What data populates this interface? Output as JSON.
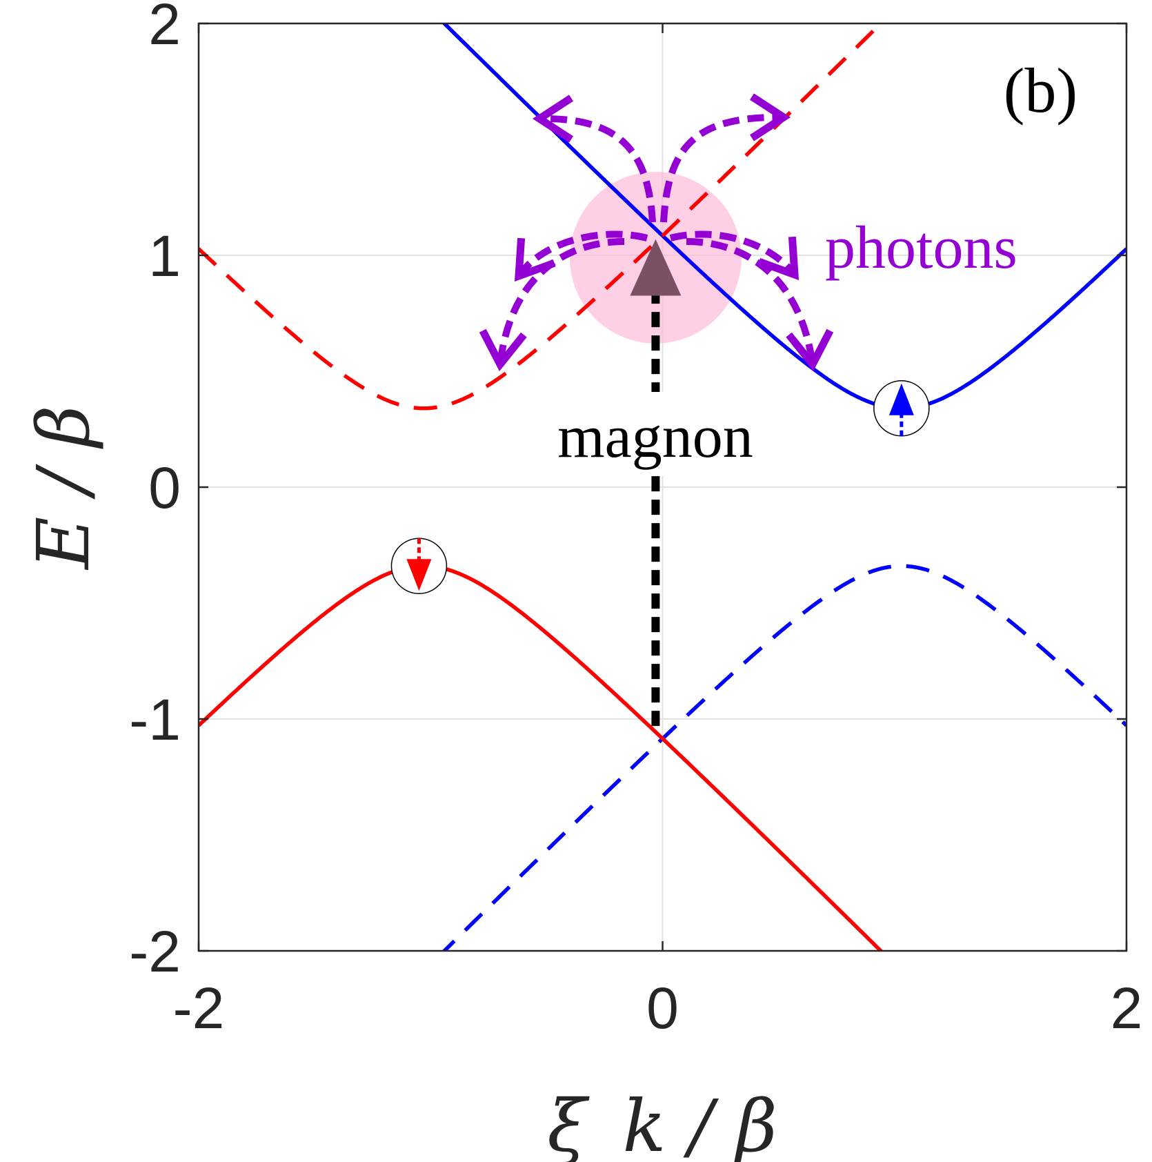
{
  "chart_data": {
    "type": "line",
    "title": "",
    "panel_label": "(b)",
    "xlabel": "ξ_k / β",
    "ylabel": "E / β",
    "xlim": [
      -2,
      2
    ],
    "ylim": [
      -2,
      2
    ],
    "xticks": [
      "-2",
      "0",
      "2"
    ],
    "yticks": [
      "2",
      "1",
      "0",
      "-1",
      "-2"
    ],
    "grid": true,
    "parameters": {
      "Delta": 0.34,
      "x_shift": 1.03
    },
    "series": [
      {
        "name": "blue-solid",
        "formula": "sqrt((x-1.03)^2+0.34^2)",
        "color": "#0000FF",
        "style": "solid",
        "x_range": [
          -0.97,
          2
        ]
      },
      {
        "name": "blue-dashed",
        "formula": "-sqrt((x-1.03)^2+0.34^2)",
        "color": "#0000FF",
        "style": "dashed",
        "x_range": [
          -0.97,
          2
        ]
      },
      {
        "name": "red-dashed",
        "formula": "sqrt((x+1.03)^2+0.34^2)",
        "color": "#FF0000",
        "style": "dashed",
        "x_range": [
          -2,
          0.97
        ]
      },
      {
        "name": "red-solid",
        "formula": "-sqrt((x+1.03)^2+0.34^2)",
        "color": "#FF0000",
        "style": "solid",
        "x_range": [
          -2,
          0.97
        ]
      }
    ],
    "markers": [
      {
        "name": "spin-up-marker",
        "x": 1.03,
        "y": 0.34,
        "direction": "up",
        "color": "#0000FF"
      },
      {
        "name": "spin-down-marker",
        "x": -1.05,
        "y": -0.34,
        "direction": "down",
        "color": "#FF0000"
      }
    ],
    "annotations": {
      "magnon_text": "magnon",
      "photons_text": "photons",
      "magnon_arrow": {
        "from": [
          -0.03,
          -1.03
        ],
        "to": [
          -0.03,
          1.07
        ]
      },
      "highlight_circle": {
        "center": [
          -0.03,
          0.99
        ],
        "radius_data": 0.37,
        "color": "#FFB6D9"
      }
    },
    "colors": {
      "blue": "#0000FF",
      "red": "#FF0000",
      "purple": "#9400D3",
      "magnon": "#000000"
    }
  }
}
